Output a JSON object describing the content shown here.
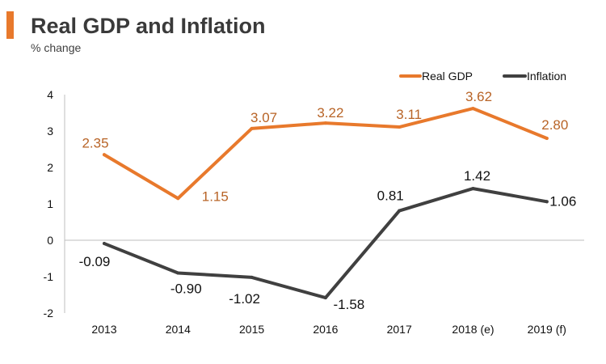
{
  "header": {
    "title": "Real GDP and Inflation",
    "subtitle": "% change"
  },
  "colors": {
    "accent": "#e8792c",
    "gdp_line": "#e8792c",
    "gdp_label": "#b86427",
    "inflation_line": "#404040",
    "inflation_label": "#111111",
    "axis": "#bfbfbf",
    "tick_text": "#111111"
  },
  "chart_data": {
    "type": "line",
    "title": "Real GDP and Inflation",
    "subtitle": "% change",
    "xlabel": "",
    "ylabel": "",
    "categories": [
      "2013",
      "2014",
      "2015",
      "2016",
      "2017",
      "2018 (e)",
      "2019 (f)"
    ],
    "ylim": [
      -2,
      4
    ],
    "yticks": [
      "4",
      "3",
      "2",
      "1",
      "0",
      "-1",
      "-2"
    ],
    "grid": false,
    "legend_position": "top-right",
    "series": [
      {
        "name": "Real GDP",
        "values": [
          2.35,
          1.15,
          3.07,
          3.22,
          3.11,
          3.62,
          2.8
        ],
        "labels": [
          "2.35",
          "1.15",
          "3.07",
          "3.22",
          "3.11",
          "3.62",
          "2.80"
        ]
      },
      {
        "name": "Inflation",
        "values": [
          -0.09,
          -0.9,
          -1.02,
          -1.58,
          0.81,
          1.42,
          1.06
        ],
        "labels": [
          "-0.09",
          "-0.90",
          "-1.02",
          "-1.58",
          "0.81",
          "1.42",
          "1.06"
        ]
      }
    ]
  }
}
